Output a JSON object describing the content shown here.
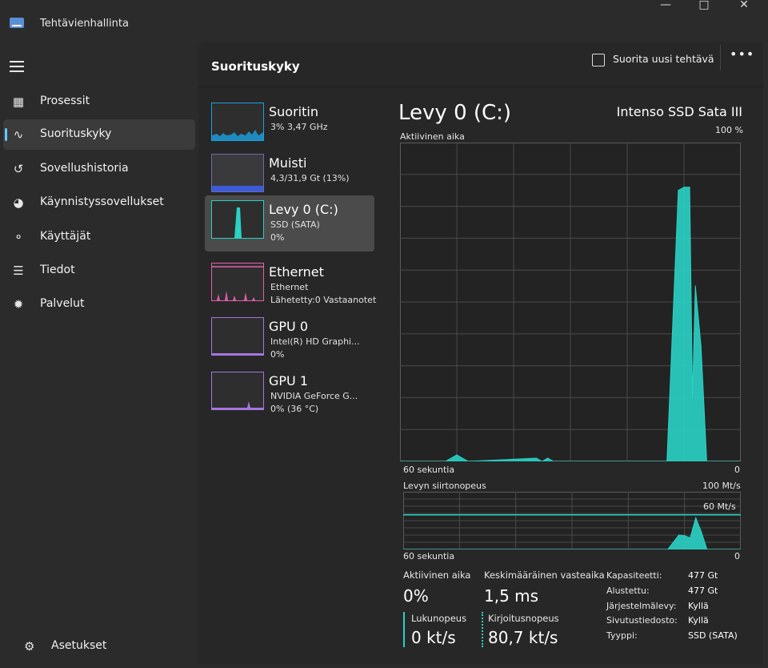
{
  "window": {
    "title": "Tehtävienhallinta"
  },
  "sidebar": {
    "items": [
      {
        "label": "Prosessit",
        "icon": "grid-icon"
      },
      {
        "label": "Suorituskyky",
        "icon": "performance-icon",
        "selected": true
      },
      {
        "label": "Sovellushistoria",
        "icon": "history-icon"
      },
      {
        "label": "Käynnistyssovellukset",
        "icon": "speedometer-icon"
      },
      {
        "label": "Käyttäjät",
        "icon": "users-icon"
      },
      {
        "label": "Tiedot",
        "icon": "list-icon"
      },
      {
        "label": "Palvelut",
        "icon": "puzzle-icon"
      }
    ],
    "settings_label": "Asetukset"
  },
  "header": {
    "title": "Suorituskyky",
    "run_task_label": "Suorita uusi tehtävä",
    "more_label": "•••"
  },
  "perf_items": [
    {
      "name": "Suoritin",
      "line1": "3% 3,47 GHz",
      "line2": ""
    },
    {
      "name": "Muisti",
      "line1": "4,3/31,9 Gt (13%)",
      "line2": ""
    },
    {
      "name": "Levy 0 (C:)",
      "line1": "SSD (SATA)",
      "line2": "0%"
    },
    {
      "name": "Ethernet",
      "line1": "Ethernet",
      "line2": "Lähetetty:0 Vastaanotet"
    },
    {
      "name": "GPU 0",
      "line1": "Intel(R) HD Graphi...",
      "line2": "0%"
    },
    {
      "name": "GPU 1",
      "line1": "NVIDIA GeForce G...",
      "line2": "0% (36 °C)"
    }
  ],
  "colors": {
    "accent": "#60cdff",
    "disk": "#2ad1c5",
    "cpu": "#1ba1e2",
    "memory": "#3b5bdb",
    "ethernet": "#e05fa8",
    "gpu": "#a575e0"
  },
  "detail": {
    "title": "Levy 0 (C:)",
    "model": "Intenso SSD Sata III",
    "active_time_label": "Aktiivinen aika",
    "active_time_max": "100 %",
    "time_span": "60 sekuntia",
    "zero": "0",
    "transfer_label": "Levyn siirtonopeus",
    "transfer_max": "100 Mt/s",
    "transfer_ref": "60 Mt/s"
  },
  "chart_data": [
    {
      "type": "area",
      "title": "Aktiivinen aika",
      "xlabel": "60 sekuntia",
      "ylim": [
        0,
        100
      ],
      "x": [
        0,
        8,
        10,
        12,
        24,
        25,
        26,
        27,
        47,
        49,
        50,
        51,
        51.5,
        52,
        53,
        54,
        56,
        58,
        60
      ],
      "values": [
        0,
        0,
        2,
        0,
        1,
        0,
        1,
        0,
        0,
        85,
        86,
        86,
        20,
        55,
        36,
        0,
        0,
        0,
        0
      ],
      "grid": true
    },
    {
      "type": "area",
      "title": "Levyn siirtonopeus",
      "xlabel": "60 sekuntia",
      "ylim": [
        0,
        100
      ],
      "reference_line": 60,
      "x": [
        0,
        47,
        49,
        50,
        51,
        52,
        53,
        54,
        56,
        60
      ],
      "values": [
        0,
        0,
        25,
        24,
        20,
        55,
        30,
        0,
        0,
        0
      ],
      "grid": true
    }
  ],
  "stats": {
    "active_time_label": "Aktiivinen aika",
    "active_time_value": "0%",
    "response_label": "Keskimääräinen vasteaika",
    "response_value": "1,5 ms",
    "read_label": "Lukunopeus",
    "read_value": "0 kt/s",
    "write_label": "Kirjoitusnopeus",
    "write_value": "80,7 kt/s"
  },
  "properties": [
    {
      "label": "Kapasiteetti:",
      "value": "477 Gt"
    },
    {
      "label": "Alustettu:",
      "value": "477 Gt"
    },
    {
      "label": "Järjestelmälevy:",
      "value": "Kyllä"
    },
    {
      "label": "Sivutustiedosto:",
      "value": "Kyllä"
    },
    {
      "label": "Tyyppi:",
      "value": "SSD (SATA)"
    }
  ]
}
